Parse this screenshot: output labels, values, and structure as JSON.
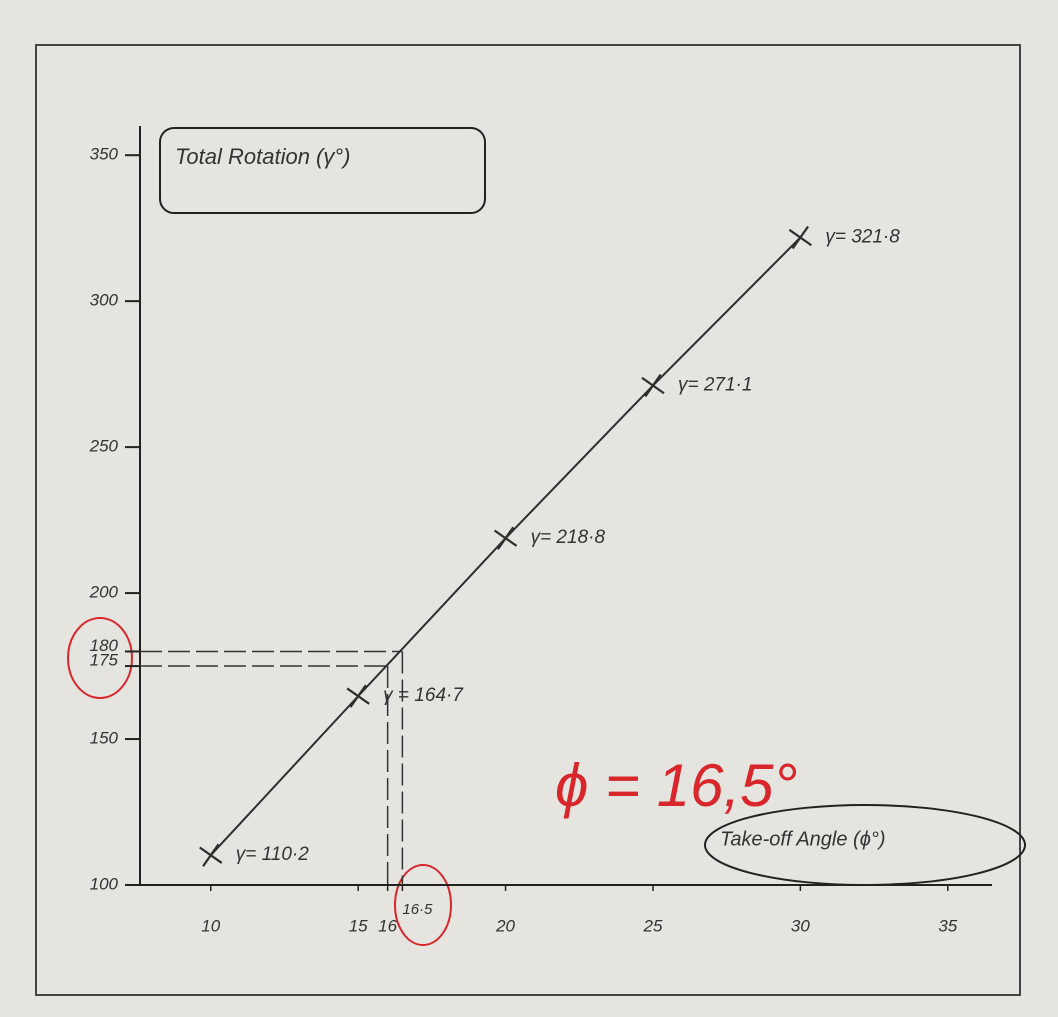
{
  "chart_data": {
    "type": "line",
    "y_label": "Total Rotation (γ°)",
    "x_label": "Take-off Angle (ϕ°)",
    "annotation": "ϕ = 16,5°",
    "x": [
      10,
      15,
      20,
      25,
      30
    ],
    "values": [
      110.2,
      164.7,
      218.8,
      271.1,
      321.8
    ],
    "value_labels": [
      "γ= 110·2",
      "γ = 164·7",
      "γ= 218·8",
      "γ= 271·1",
      "γ= 321·8"
    ],
    "color": "#2e2e2e",
    "xlim": [
      7.6,
      36.5
    ],
    "ylim": [
      100,
      360
    ],
    "xticks": [
      10,
      15,
      16,
      {
        "value": 16.5,
        "label": "16·5"
      },
      20,
      25,
      30,
      35
    ],
    "yticks": [
      100,
      150,
      175,
      180,
      200,
      250,
      300,
      350
    ],
    "reference_lines": [
      {
        "x": 16,
        "y": 175
      },
      {
        "x": 16.5,
        "y": 180
      }
    ]
  }
}
